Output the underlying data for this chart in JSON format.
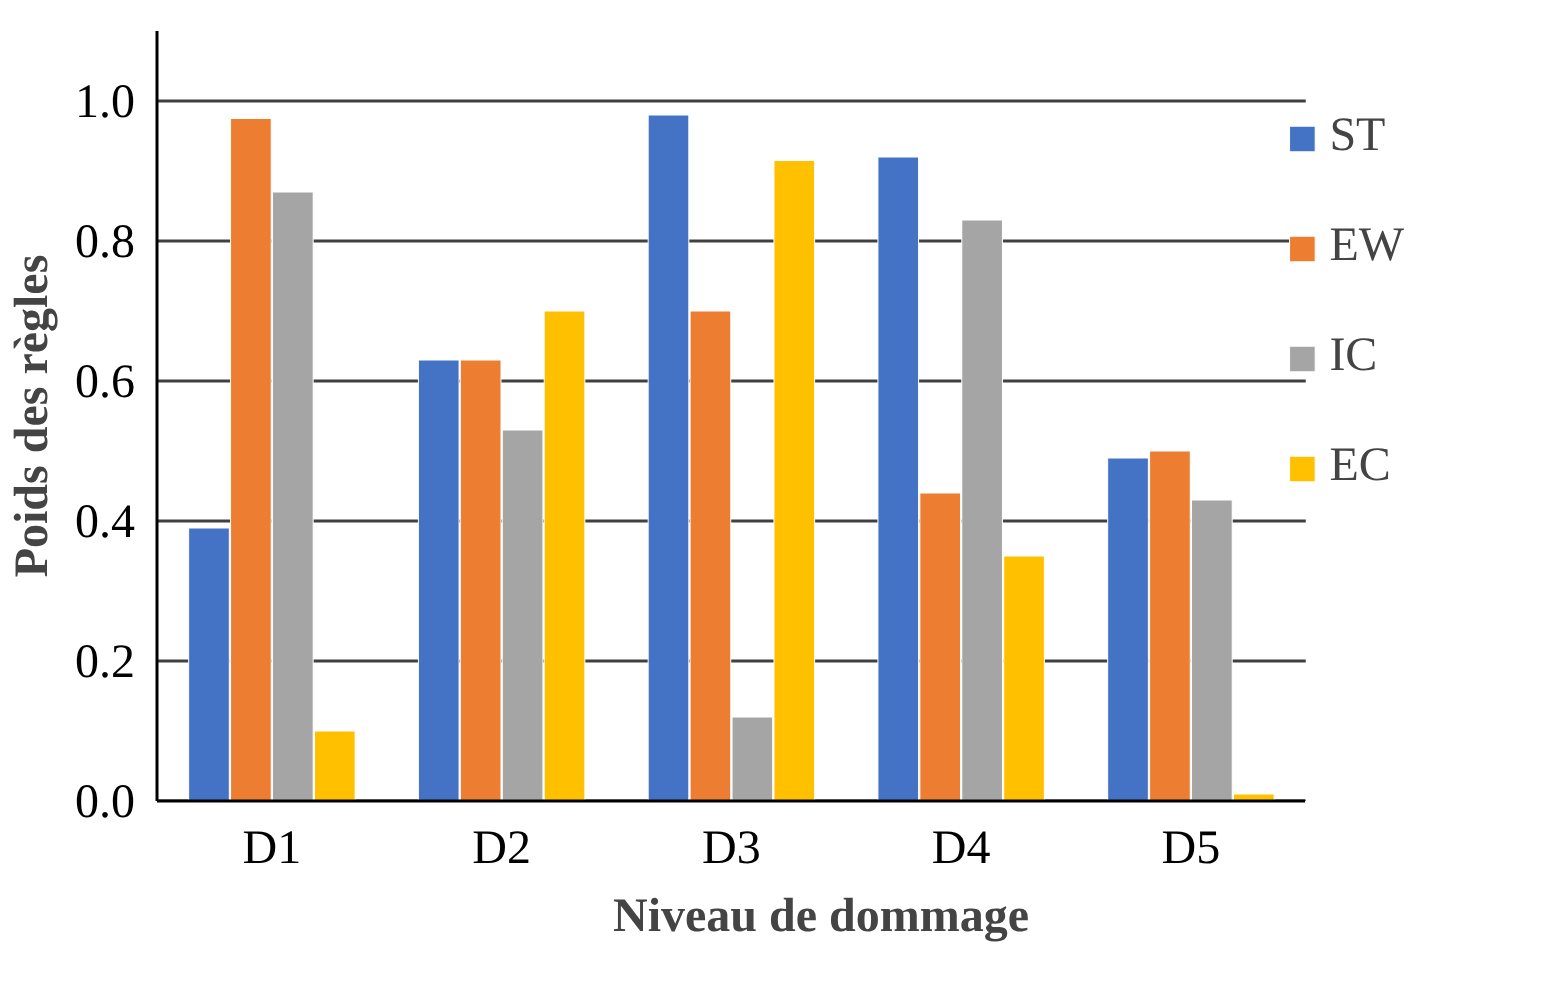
{
  "chart_data": {
    "type": "bar",
    "xlabel": "Niveau de dommage",
    "ylabel": "Poids des règles",
    "categories": [
      "D1",
      "D2",
      "D3",
      "D4",
      "D5"
    ],
    "series": [
      {
        "name": "ST",
        "color": "#4472c4",
        "values": [
          0.39,
          0.63,
          0.98,
          0.92,
          0.49
        ]
      },
      {
        "name": "EW",
        "color": "#ed7d31",
        "values": [
          0.975,
          0.63,
          0.7,
          0.44,
          0.5
        ]
      },
      {
        "name": "IC",
        "color": "#a5a5a5",
        "values": [
          0.87,
          0.53,
          0.12,
          0.83,
          0.43
        ]
      },
      {
        "name": "EC",
        "color": "#ffc000",
        "values": [
          0.1,
          0.7,
          0.915,
          0.35,
          0.01
        ]
      }
    ],
    "ylim": [
      0,
      1.1
    ],
    "yticks": [
      {
        "value": 0,
        "label": "0.0"
      },
      0.2,
      0.4,
      0.6,
      0.8,
      {
        "value": 1,
        "label": "1.0"
      }
    ],
    "grid": "y",
    "legend": "right"
  }
}
